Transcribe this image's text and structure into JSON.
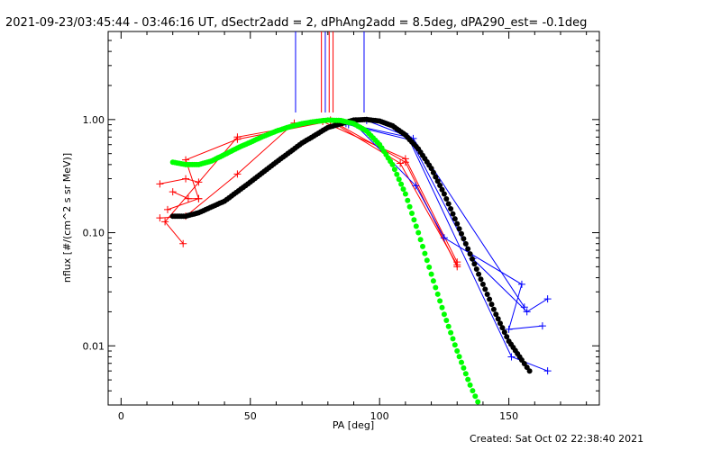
{
  "header": {
    "title": "2021-09-23/03:45:44 - 03:46:16 UT, dSectr2add = 2, dPhAng2add = 8.5deg, dPA290_est= -0.1deg"
  },
  "footer": {
    "created": "Created: Sat Oct 02 22:38:40 2021"
  },
  "chart_data": {
    "type": "line",
    "xlabel": "PA [deg]",
    "ylabel": "nflux [#/(cm^2 s sr MeV)]",
    "xlim": [
      -5,
      185
    ],
    "ylim": [
      0.003,
      6
    ],
    "yscale": "log",
    "x_ticks": [
      0,
      50,
      100,
      150
    ],
    "x_tick_labels": [
      "0",
      "50",
      "100",
      "150"
    ],
    "y_ticks": [
      0.01,
      0.1,
      1.0
    ],
    "y_tick_labels": [
      "0.01",
      "0.10",
      "1.00"
    ],
    "colors": {
      "red": "#ff0000",
      "blue": "#0000ff",
      "black": "#000000",
      "green": "#00ff00"
    },
    "vertical_markers": [
      {
        "x": 67.5,
        "color": "#0000ff"
      },
      {
        "x": 77.5,
        "color": "#ff0000"
      },
      {
        "x": 79,
        "color": "#0000ff"
      },
      {
        "x": 80.5,
        "color": "#ff0000"
      },
      {
        "x": 82,
        "color": "#ff0000"
      },
      {
        "x": 94,
        "color": "#0000ff"
      }
    ],
    "red_series": [
      {
        "name": "",
        "points": [
          [
            24,
            0.08
          ],
          [
            17,
            0.125
          ],
          [
            45,
            0.7
          ],
          [
            78,
            0.96
          ],
          [
            110,
            0.45
          ],
          [
            130,
            0.055
          ]
        ]
      },
      {
        "name": "",
        "points": [
          [
            15,
            0.135
          ],
          [
            25,
            0.14
          ],
          [
            45,
            0.33
          ],
          [
            67,
            0.93
          ],
          [
            81,
            0.99
          ],
          [
            110,
            0.42
          ],
          [
            130,
            0.05
          ]
        ]
      },
      {
        "name": "",
        "points": [
          [
            15,
            0.27
          ],
          [
            25,
            0.3
          ],
          [
            30,
            0.28
          ]
        ]
      },
      {
        "name": "",
        "points": [
          [
            18,
            0.16
          ],
          [
            30,
            0.2
          ],
          [
            25,
            0.44
          ],
          [
            45,
            0.67
          ],
          [
            81,
            0.97
          ],
          [
            108,
            0.41
          ],
          [
            130,
            0.052
          ]
        ]
      },
      {
        "name": "",
        "points": [
          [
            20,
            0.23
          ],
          [
            26,
            0.2
          ],
          [
            30,
            0.2
          ]
        ]
      }
    ],
    "blue_series": [
      {
        "name": "",
        "points": [
          [
            90,
            0.93
          ],
          [
            114,
            0.26
          ],
          [
            125,
            0.09
          ],
          [
            155,
            0.035
          ],
          [
            150,
            0.014
          ],
          [
            163,
            0.015
          ]
        ]
      },
      {
        "name": "",
        "points": [
          [
            88,
            0.9
          ],
          [
            112,
            0.66
          ],
          [
            136,
            0.059
          ],
          [
            157,
            0.02
          ],
          [
            165,
            0.026
          ]
        ]
      },
      {
        "name": "",
        "points": [
          [
            87,
            0.92
          ],
          [
            111,
            0.7
          ],
          [
            151,
            0.008
          ],
          [
            165,
            0.006
          ]
        ]
      },
      {
        "name": "",
        "points": [
          [
            95,
            0.98
          ],
          [
            113,
            0.68
          ],
          [
            156,
            0.022
          ]
        ]
      }
    ],
    "black_curve": {
      "name": "",
      "points": [
        [
          20,
          0.14
        ],
        [
          25,
          0.14
        ],
        [
          30,
          0.15
        ],
        [
          40,
          0.19
        ],
        [
          50,
          0.28
        ],
        [
          60,
          0.42
        ],
        [
          70,
          0.62
        ],
        [
          80,
          0.85
        ],
        [
          90,
          0.99
        ],
        [
          95,
          1.0
        ],
        [
          100,
          0.97
        ],
        [
          105,
          0.88
        ],
        [
          110,
          0.73
        ],
        [
          115,
          0.55
        ],
        [
          120,
          0.37
        ],
        [
          125,
          0.22
        ],
        [
          130,
          0.12
        ],
        [
          135,
          0.065
        ],
        [
          140,
          0.035
        ],
        [
          145,
          0.019
        ],
        [
          150,
          0.011
        ],
        [
          155,
          0.0075
        ],
        [
          158,
          0.006
        ]
      ]
    },
    "green_curve": {
      "name": "",
      "points": [
        [
          20,
          0.42
        ],
        [
          25,
          0.4
        ],
        [
          30,
          0.4
        ],
        [
          35,
          0.43
        ],
        [
          40,
          0.49
        ],
        [
          45,
          0.56
        ],
        [
          50,
          0.63
        ],
        [
          55,
          0.71
        ],
        [
          60,
          0.79
        ],
        [
          65,
          0.86
        ],
        [
          70,
          0.92
        ],
        [
          75,
          0.96
        ],
        [
          80,
          0.99
        ],
        [
          85,
          0.98
        ],
        [
          90,
          0.92
        ],
        [
          95,
          0.79
        ],
        [
          100,
          0.6
        ],
        [
          105,
          0.4
        ],
        [
          110,
          0.22
        ],
        [
          115,
          0.1
        ],
        [
          120,
          0.043
        ],
        [
          125,
          0.019
        ],
        [
          130,
          0.009
        ],
        [
          135,
          0.0045
        ],
        [
          138,
          0.0032
        ]
      ]
    }
  }
}
